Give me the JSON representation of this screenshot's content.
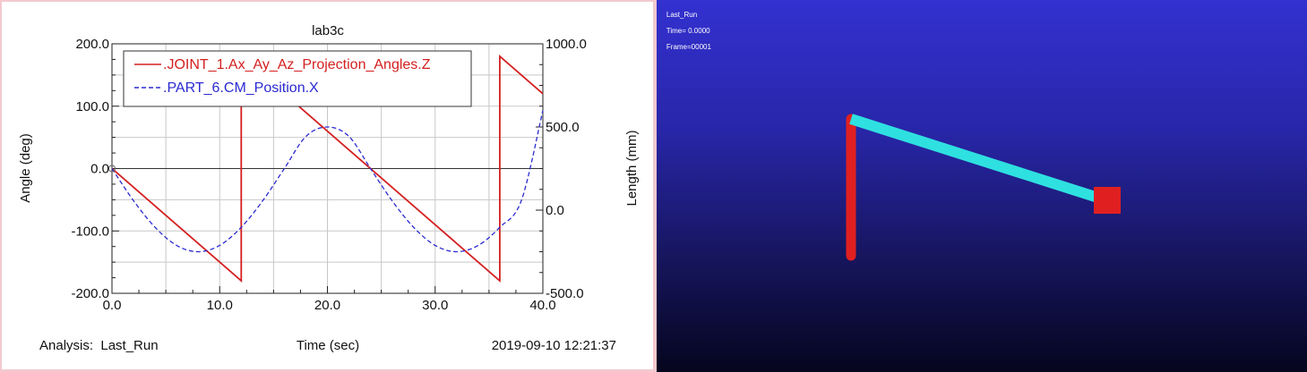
{
  "plot": {
    "title": "lab3c",
    "left_axis_label": "Angle (deg)",
    "right_axis_label": "Length (mm)",
    "x_axis_label": "Time (sec)",
    "analysis_label": "Analysis:  Last_Run",
    "timestamp": "2019-09-10 12:21:37",
    "legend": [
      {
        "label": ".JOINT_1.Ax_Ay_Az_Projection_Angles.Z",
        "color": "#d42020",
        "style": "solid"
      },
      {
        "label": ".PART_6.CM_Position.X",
        "color": "#2a2ad0",
        "style": "dashed"
      }
    ]
  },
  "chart_data": {
    "type": "line",
    "xlabel": "Time (sec)",
    "ylabel": "Angle (deg)",
    "y2label": "Length (mm)",
    "xlim": [
      0,
      40
    ],
    "ylim": [
      -200,
      200
    ],
    "y2lim": [
      -500,
      1000
    ],
    "x_ticks": [
      "0.0",
      "10.0",
      "20.0",
      "30.0",
      "40.0"
    ],
    "y_ticks": [
      "200.0",
      "100.0",
      "0.0",
      "-100.0",
      "-200.0"
    ],
    "y2_ticks": [
      "1000.0",
      "500.0",
      "0.0",
      "-500.0"
    ],
    "grid": true,
    "legend_position": "top-left",
    "series": [
      {
        "name": ".JOINT_1.Ax_Ay_Az_Projection_Angles.Z",
        "axis": "left",
        "color": "#d42020",
        "x": [
          0,
          12,
          12,
          36,
          36,
          40
        ],
        "y": [
          0,
          -180,
          180,
          -180,
          180,
          120
        ]
      },
      {
        "name": ".PART_6.CM_Position.X",
        "axis": "right",
        "color": "#2a2ad0",
        "x": [
          0,
          2,
          4,
          6,
          8,
          10,
          12,
          14,
          16,
          18,
          20,
          22,
          24,
          26,
          28,
          30,
          32,
          34,
          36,
          38,
          40
        ],
        "y": [
          250,
          57,
          -103,
          -212,
          -250,
          -212,
          -103,
          57,
          250,
          443,
          500,
          443,
          250,
          57,
          -103,
          -212,
          -250,
          -212,
          -103,
          57,
          600
        ]
      }
    ]
  },
  "animation": {
    "run_label": "Last_Run",
    "time_label": "Time= 0.0000",
    "frame_label": "Frame=00001",
    "colors": {
      "post": "#e02020",
      "link": "#2fe0e0",
      "block": "#e02020"
    }
  }
}
